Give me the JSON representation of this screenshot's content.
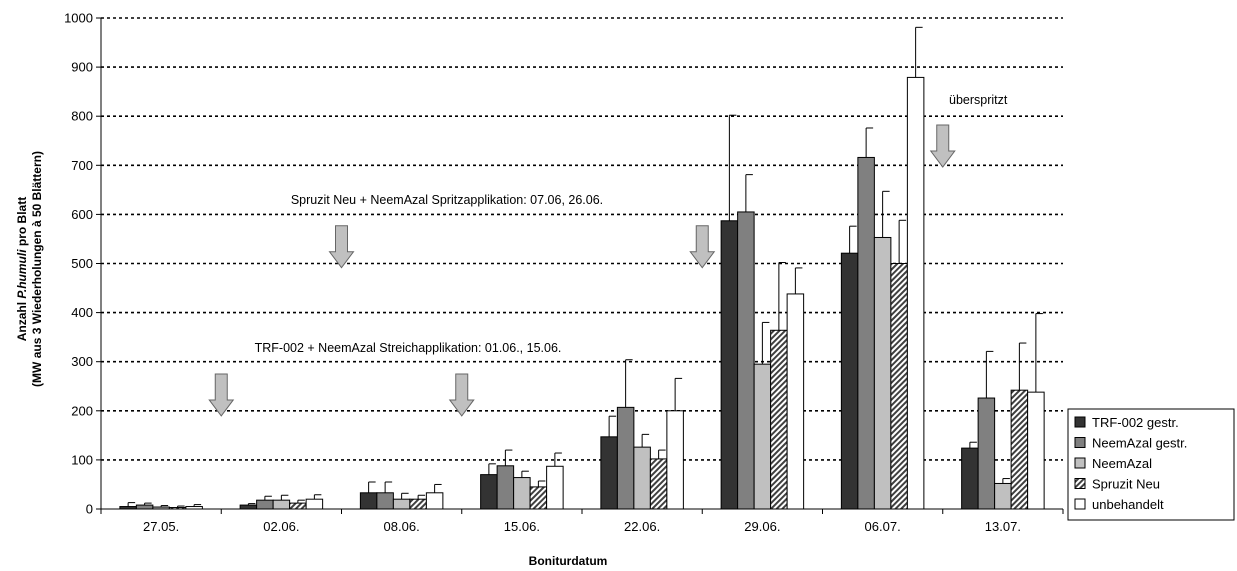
{
  "chart_data": {
    "type": "bar",
    "xlabel": "Boniturdatum",
    "ylabel_line1_pre": "Anzahl ",
    "ylabel_line1_italic": "P.humuli",
    "ylabel_line1_post": " pro Blatt",
    "ylabel_line2": "(MW aus 3 Wiederholungen à 50 Blättern)",
    "ylim": [
      0,
      1000
    ],
    "yticks": [
      0,
      100,
      200,
      300,
      400,
      500,
      600,
      700,
      800,
      900,
      1000
    ],
    "grid": true,
    "legend_position": "bottom-right",
    "categories": [
      "27.05.",
      "02.06.",
      "08.06.",
      "15.06.",
      "22.06.",
      "29.06.",
      "06.07.",
      "13.07."
    ],
    "series": [
      {
        "name": "TRF-002 gestr.",
        "color": "#333333",
        "pattern": "solid",
        "values": [
          5,
          8,
          33,
          70,
          147,
          587,
          521,
          124
        ],
        "errors": [
          8,
          3,
          22,
          22,
          42,
          215,
          55,
          12
        ]
      },
      {
        "name": "NeemAzal gestr.",
        "color": "#808080",
        "pattern": "solid",
        "values": [
          8,
          18,
          33,
          88,
          207,
          605,
          716,
          226
        ],
        "errors": [
          4,
          8,
          22,
          32,
          97,
          76,
          60,
          95
        ]
      },
      {
        "name": "NeemAzal",
        "color": "#c0c0c0",
        "pattern": "solid",
        "values": [
          4,
          18,
          20,
          64,
          126,
          295,
          553,
          52
        ],
        "errors": [
          3,
          10,
          12,
          13,
          26,
          85,
          94,
          10
        ]
      },
      {
        "name": "Spruzit Neu",
        "color": "#999999",
        "pattern": "hatch",
        "values": [
          3,
          12,
          20,
          45,
          102,
          364,
          500,
          242
        ],
        "errors": [
          3,
          6,
          8,
          12,
          18,
          138,
          88,
          96
        ]
      },
      {
        "name": "unbehandelt",
        "color": "#ffffff",
        "pattern": "solid",
        "values": [
          5,
          20,
          33,
          87,
          200,
          438,
          879,
          238
        ],
        "errors": [
          4,
          9,
          17,
          27,
          66,
          53,
          102,
          160
        ]
      }
    ],
    "annotations": [
      {
        "text": "Spruzit Neu + NeemAzal Spritzapplikation: 07.06, 26.06."
      },
      {
        "text": "TRF-002 + NeemAzal Streichapplikation: 01.06., 15.06."
      },
      {
        "text": "überspritzt"
      }
    ],
    "arrows": [
      {
        "label": "arrow-spritz-07-06",
        "between": [
          "02.06.",
          "08.06."
        ],
        "top_value": 577
      },
      {
        "label": "arrow-spritz-26-06",
        "between": [
          "22.06.",
          "29.06."
        ],
        "top_value": 577
      },
      {
        "label": "arrow-streich-01-06",
        "between": [
          "27.05.",
          "02.06."
        ],
        "top_value": 275
      },
      {
        "label": "arrow-streich-15-06",
        "between": [
          "08.06.",
          "15.06."
        ],
        "top_value": 275
      },
      {
        "label": "arrow-uberspritzt",
        "between": [
          "06.07.",
          "13.07."
        ],
        "top_value": 782
      }
    ]
  }
}
